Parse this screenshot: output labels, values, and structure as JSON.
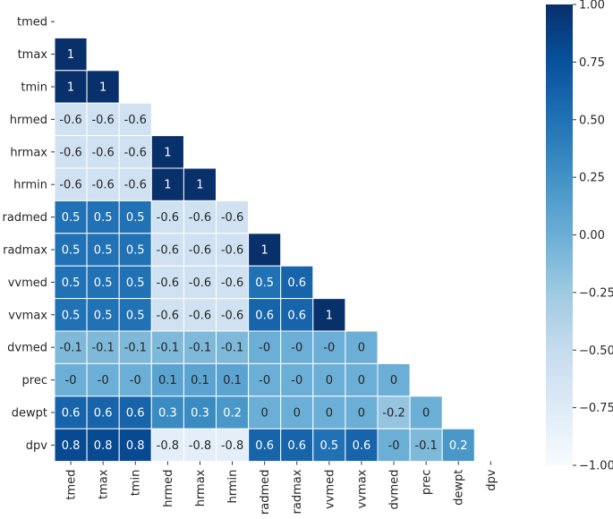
{
  "chart_data": {
    "type": "heatmap",
    "variables": [
      "tmed",
      "tmax",
      "tmin",
      "hrmed",
      "hrmax",
      "hrmin",
      "radmed",
      "radmax",
      "vvmed",
      "vvmax",
      "dvmed",
      "prec",
      "dewpt",
      "dpv"
    ],
    "rows": [
      {
        "label": "tmed",
        "values": []
      },
      {
        "label": "tmax",
        "values": [
          1
        ]
      },
      {
        "label": "tmin",
        "values": [
          1,
          1
        ]
      },
      {
        "label": "hrmed",
        "values": [
          -0.6,
          -0.6,
          -0.6
        ]
      },
      {
        "label": "hrmax",
        "values": [
          -0.6,
          -0.6,
          -0.6,
          1
        ]
      },
      {
        "label": "hrmin",
        "values": [
          -0.6,
          -0.6,
          -0.6,
          1,
          1
        ]
      },
      {
        "label": "radmed",
        "values": [
          0.5,
          0.5,
          0.5,
          -0.6,
          -0.6,
          -0.6
        ]
      },
      {
        "label": "radmax",
        "values": [
          0.5,
          0.5,
          0.5,
          -0.6,
          -0.6,
          -0.6,
          1
        ]
      },
      {
        "label": "vvmed",
        "values": [
          0.5,
          0.5,
          0.5,
          -0.6,
          -0.6,
          -0.6,
          0.5,
          0.6
        ]
      },
      {
        "label": "vvmax",
        "values": [
          0.5,
          0.5,
          0.5,
          -0.6,
          -0.6,
          -0.6,
          0.6,
          0.6,
          1
        ]
      },
      {
        "label": "dvmed",
        "values": [
          -0.1,
          -0.1,
          -0.1,
          -0.1,
          -0.1,
          -0.1,
          0,
          0,
          0,
          0
        ]
      },
      {
        "label": "prec",
        "values": [
          0,
          0,
          0,
          0.1,
          0.1,
          0.1,
          0,
          0,
          0,
          0,
          0
        ]
      },
      {
        "label": "dewpt",
        "values": [
          0.6,
          0.6,
          0.6,
          0.3,
          0.3,
          0.2,
          0,
          0,
          0,
          0,
          -0.2,
          0
        ]
      },
      {
        "label": "dpv",
        "values": [
          0.8,
          0.8,
          0.8,
          -0.8,
          -0.8,
          -0.8,
          0.6,
          0.6,
          0.5,
          0.6,
          0,
          -0.1,
          0.2
        ]
      }
    ],
    "cell_text": [
      [],
      [
        "1"
      ],
      [
        "1",
        "1"
      ],
      [
        "-0.6",
        "-0.6",
        "-0.6"
      ],
      [
        "-0.6",
        "-0.6",
        "-0.6",
        "1"
      ],
      [
        "-0.6",
        "-0.6",
        "-0.6",
        "1",
        "1"
      ],
      [
        "0.5",
        "0.5",
        "0.5",
        "-0.6",
        "-0.6",
        "-0.6"
      ],
      [
        "0.5",
        "0.5",
        "0.5",
        "-0.6",
        "-0.6",
        "-0.6",
        "1"
      ],
      [
        "0.5",
        "0.5",
        "0.5",
        "-0.6",
        "-0.6",
        "-0.6",
        "0.5",
        "0.6"
      ],
      [
        "0.5",
        "0.5",
        "0.5",
        "-0.6",
        "-0.6",
        "-0.6",
        "0.6",
        "0.6",
        "1"
      ],
      [
        "-0.1",
        "-0.1",
        "-0.1",
        "-0.1",
        "-0.1",
        "-0.1",
        "-0",
        "-0",
        "-0",
        "0"
      ],
      [
        "-0",
        "-0",
        "-0",
        "0.1",
        "0.1",
        "0.1",
        "-0",
        "-0",
        "0",
        "0",
        "0"
      ],
      [
        "0.6",
        "0.6",
        "0.6",
        "0.3",
        "0.3",
        "0.2",
        "0",
        "0",
        "0",
        "0",
        "-0.2",
        "0"
      ],
      [
        "0.8",
        "0.8",
        "0.8",
        "-0.8",
        "-0.8",
        "-0.8",
        "0.6",
        "0.6",
        "0.5",
        "0.6",
        "-0",
        "-0.1",
        "0.2"
      ]
    ],
    "colormap": "Blues",
    "colormap_stops": [
      "#f7fbff",
      "#deebf7",
      "#c6dbef",
      "#9ecae1",
      "#6baed6",
      "#4292c6",
      "#2171b5",
      "#08519c",
      "#08306b"
    ],
    "grid_line_color": "#ffffff",
    "vmin": -1.0,
    "vmax": 1.0,
    "colorbar_ticks": [
      1.0,
      0.75,
      0.5,
      0.25,
      0.0,
      -0.25,
      -0.5,
      -0.75,
      -1.0
    ],
    "colorbar_tick_labels": [
      "1.00",
      "0.75",
      "0.50",
      "0.25",
      "0.00",
      "−0.25",
      "−0.50",
      "−0.75",
      "−1.00"
    ],
    "title": "",
    "xlabel": "",
    "ylabel": ""
  }
}
